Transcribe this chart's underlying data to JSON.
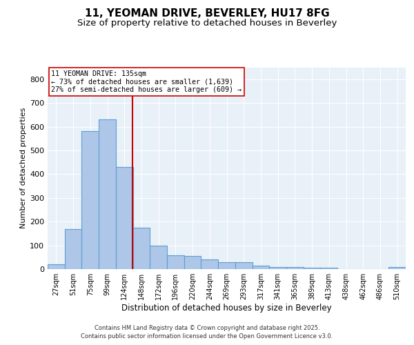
{
  "title_line1": "11, YEOMAN DRIVE, BEVERLEY, HU17 8FG",
  "title_line2": "Size of property relative to detached houses in Beverley",
  "xlabel": "Distribution of detached houses by size in Beverley",
  "ylabel": "Number of detached properties",
  "bin_labels": [
    "27sqm",
    "51sqm",
    "75sqm",
    "99sqm",
    "124sqm",
    "148sqm",
    "172sqm",
    "196sqm",
    "220sqm",
    "244sqm",
    "269sqm",
    "293sqm",
    "317sqm",
    "341sqm",
    "365sqm",
    "389sqm",
    "413sqm",
    "438sqm",
    "462sqm",
    "486sqm",
    "510sqm"
  ],
  "bar_values": [
    20,
    170,
    580,
    630,
    430,
    175,
    100,
    57,
    55,
    40,
    30,
    30,
    15,
    10,
    10,
    5,
    5,
    0,
    0,
    0,
    10
  ],
  "bar_color": "#aec6e8",
  "bar_edge_color": "#5a9fd4",
  "vline_color": "#cc0000",
  "annotation_text": "11 YEOMAN DRIVE: 135sqm\n← 73% of detached houses are smaller (1,639)\n27% of semi-detached houses are larger (609) →",
  "annotation_box_color": "white",
  "annotation_box_edge": "#cc0000",
  "ylim": [
    0,
    850
  ],
  "yticks": [
    0,
    100,
    200,
    300,
    400,
    500,
    600,
    700,
    800
  ],
  "footer1": "Contains HM Land Registry data © Crown copyright and database right 2025.",
  "footer2": "Contains public sector information licensed under the Open Government Licence v3.0.",
  "bg_color": "#e8f0f8",
  "fig_bg_color": "#ffffff",
  "title1_fontsize": 11,
  "title2_fontsize": 9.5
}
